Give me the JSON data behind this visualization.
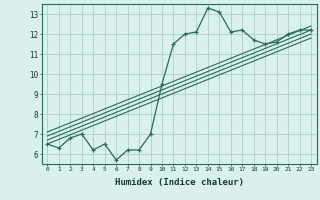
{
  "xlabel": "Humidex (Indice chaleur)",
  "bg_color": "#d8f0ee",
  "grid_color": "#b0ceca",
  "line_color": "#2a6b5a",
  "xlim": [
    -0.5,
    23.5
  ],
  "ylim": [
    5.5,
    13.5
  ],
  "xticks": [
    0,
    1,
    2,
    3,
    4,
    5,
    6,
    7,
    8,
    9,
    10,
    11,
    12,
    13,
    14,
    15,
    16,
    17,
    18,
    19,
    20,
    21,
    22,
    23
  ],
  "yticks": [
    6,
    7,
    8,
    9,
    10,
    11,
    12,
    13
  ],
  "main_x": [
    0,
    1,
    2,
    3,
    4,
    5,
    6,
    7,
    8,
    9,
    10,
    11,
    12,
    13,
    14,
    15,
    16,
    17,
    18,
    19,
    20,
    21,
    22,
    23
  ],
  "main_y": [
    6.5,
    6.3,
    6.8,
    7.0,
    6.2,
    6.5,
    5.7,
    6.2,
    6.2,
    7.0,
    9.5,
    11.5,
    12.0,
    12.1,
    13.3,
    13.1,
    12.1,
    12.2,
    11.7,
    11.5,
    11.6,
    12.0,
    12.2,
    12.2
  ],
  "lines": [
    [
      6.5,
      11.8
    ],
    [
      6.7,
      12.0
    ],
    [
      6.9,
      12.2
    ],
    [
      7.1,
      12.4
    ]
  ],
  "spine_color": "#2a6b5a"
}
